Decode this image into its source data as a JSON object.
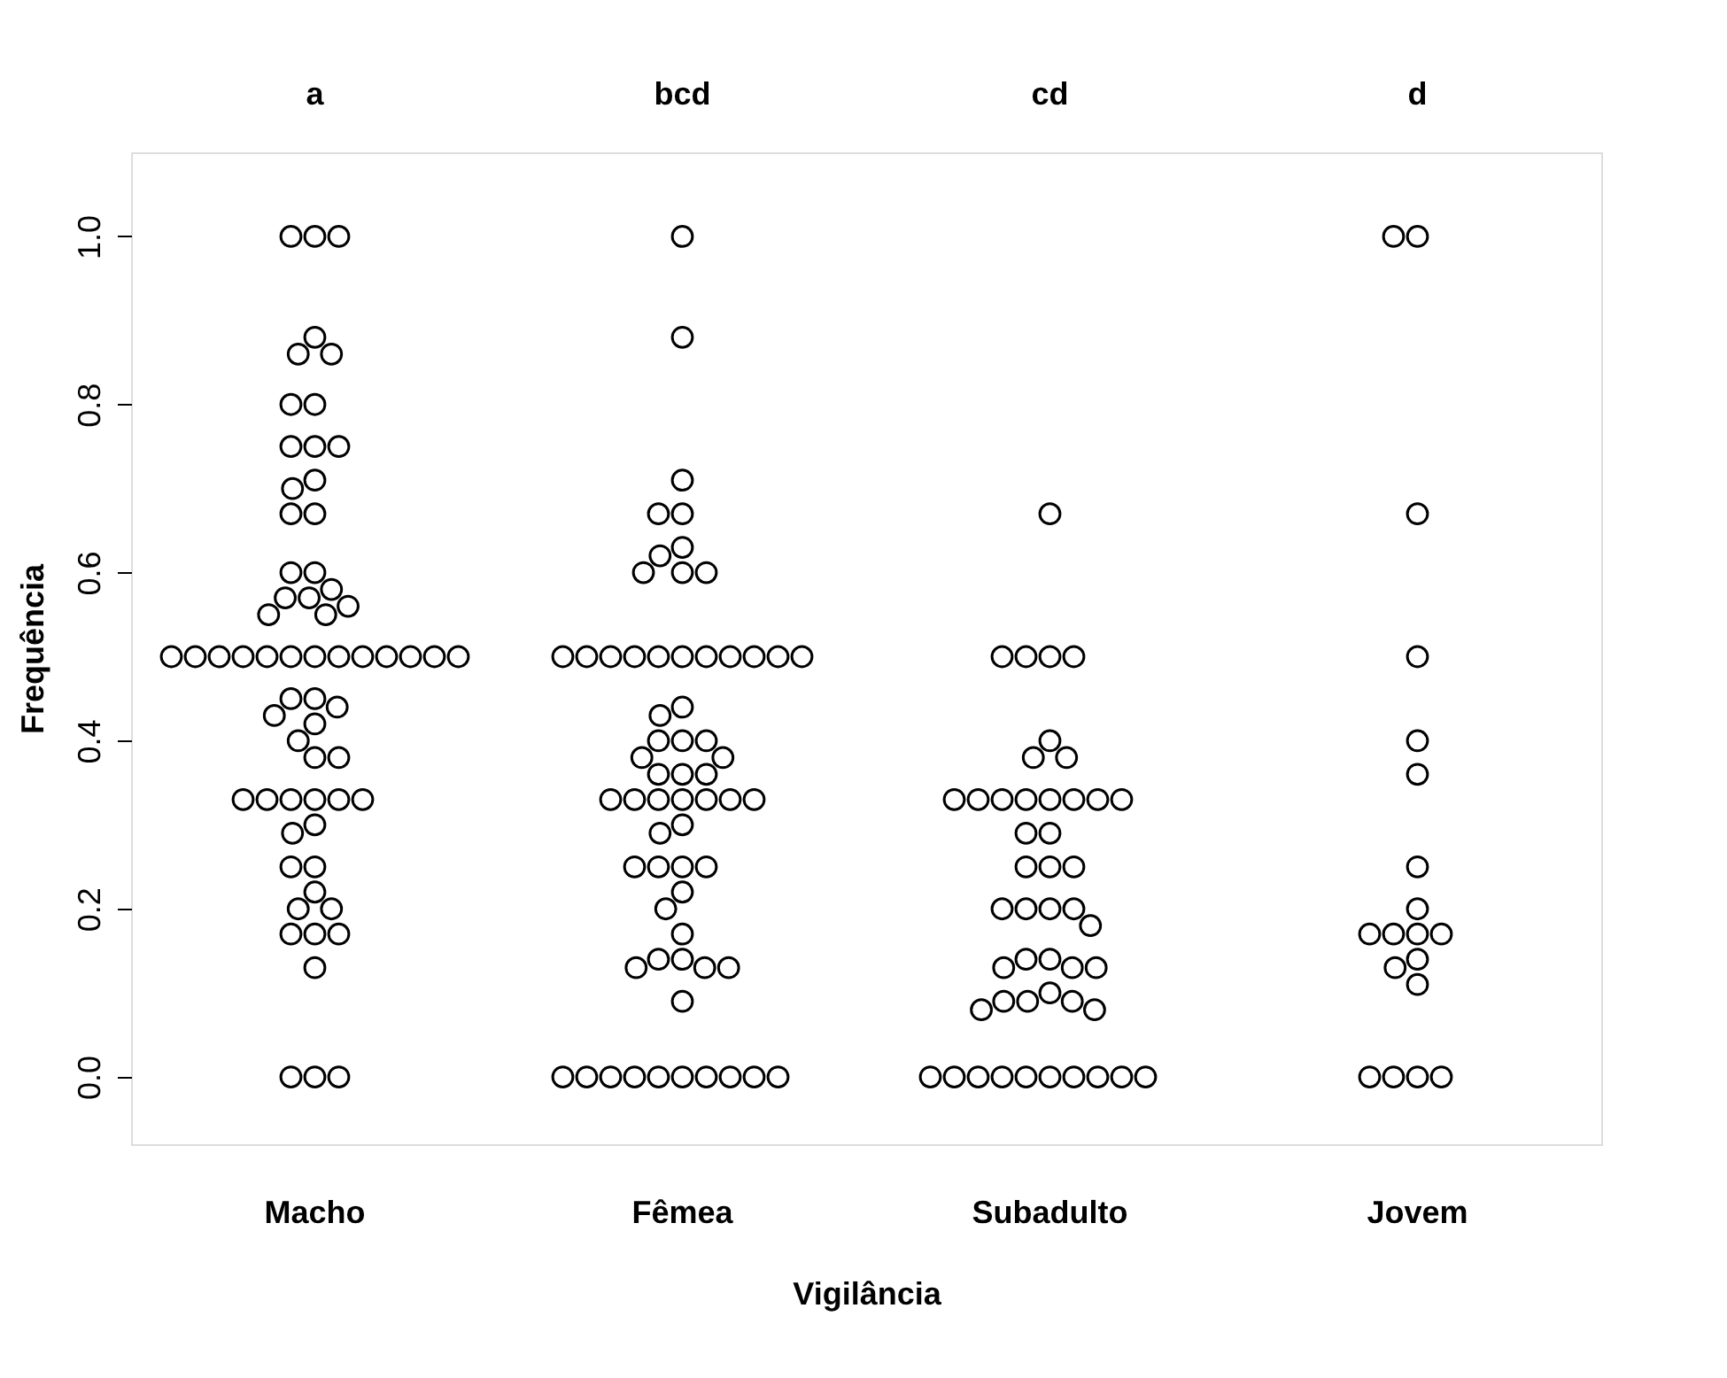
{
  "chart_data": {
    "type": "scatter",
    "categories": [
      "Macho",
      "Fêmea",
      "Subadulto",
      "Jovem"
    ],
    "xlabel": "Vigilância",
    "ylabel": "Frequência",
    "ylim": [
      -0.08,
      1.1
    ],
    "yticks": [
      {
        "value": 0,
        "label": "0.0"
      },
      {
        "value": 0.2,
        "label": "0.2"
      },
      {
        "value": 0.4,
        "label": "0.4"
      },
      {
        "value": 0.6,
        "label": "0.6"
      },
      {
        "value": 0.8,
        "label": "0.8"
      },
      {
        "value": 1,
        "label": "1.0"
      }
    ],
    "grid": false,
    "marker": "circle",
    "annotations": [
      "a",
      "bcd",
      "cd",
      "d"
    ],
    "series": [
      {
        "type": "scatter",
        "color": "#000000",
        "x": [
          "Macho",
          "Macho",
          "Macho",
          "Macho",
          "Macho",
          "Macho",
          "Macho",
          "Macho",
          "Macho",
          "Macho",
          "Macho",
          "Macho",
          "Macho",
          "Macho",
          "Macho",
          "Macho",
          "Macho",
          "Macho",
          "Macho",
          "Macho",
          "Macho",
          "Macho",
          "Macho",
          "Macho",
          "Macho",
          "Macho",
          "Macho",
          "Macho",
          "Macho",
          "Macho",
          "Macho",
          "Macho",
          "Macho",
          "Macho",
          "Macho",
          "Macho",
          "Macho",
          "Macho",
          "Macho",
          "Macho",
          "Macho",
          "Macho",
          "Macho",
          "Macho",
          "Macho",
          "Macho",
          "Macho",
          "Macho",
          "Macho",
          "Macho",
          "Macho",
          "Macho",
          "Macho",
          "Macho",
          "Macho",
          "Macho",
          "Macho",
          "Macho",
          "Macho",
          "Macho",
          "Macho",
          "Macho",
          "Macho",
          "Macho"
        ],
        "values": [
          1,
          1,
          1,
          0.88,
          0.86,
          0.86,
          0.8,
          0.8,
          0.75,
          0.75,
          0.75,
          0.71,
          0.7,
          0.67,
          0.67,
          0.6,
          0.6,
          0.58,
          0.57,
          0.57,
          0.56,
          0.55,
          0.55,
          0.5,
          0.5,
          0.5,
          0.5,
          0.5,
          0.5,
          0.5,
          0.5,
          0.5,
          0.5,
          0.5,
          0.5,
          0.5,
          0.45,
          0.45,
          0.44,
          0.43,
          0.42,
          0.4,
          0.38,
          0.38,
          0.33,
          0.33,
          0.33,
          0.33,
          0.33,
          0.33,
          0.3,
          0.29,
          0.25,
          0.25,
          0.22,
          0.2,
          0.2,
          0.17,
          0.17,
          0.17,
          0.13,
          0,
          0,
          0
        ]
      },
      {
        "type": "scatter",
        "color": "#000000",
        "x": [
          "Fêmea",
          "Fêmea",
          "Fêmea",
          "Fêmea",
          "Fêmea",
          "Fêmea",
          "Fêmea",
          "Fêmea",
          "Fêmea",
          "Fêmea",
          "Fêmea",
          "Fêmea",
          "Fêmea",
          "Fêmea",
          "Fêmea",
          "Fêmea",
          "Fêmea",
          "Fêmea",
          "Fêmea",
          "Fêmea",
          "Fêmea",
          "Fêmea",
          "Fêmea",
          "Fêmea",
          "Fêmea",
          "Fêmea",
          "Fêmea",
          "Fêmea",
          "Fêmea",
          "Fêmea",
          "Fêmea",
          "Fêmea",
          "Fêmea",
          "Fêmea",
          "Fêmea",
          "Fêmea",
          "Fêmea",
          "Fêmea",
          "Fêmea",
          "Fêmea",
          "Fêmea",
          "Fêmea",
          "Fêmea",
          "Fêmea",
          "Fêmea",
          "Fêmea",
          "Fêmea",
          "Fêmea",
          "Fêmea",
          "Fêmea",
          "Fêmea",
          "Fêmea",
          "Fêmea",
          "Fêmea",
          "Fêmea",
          "Fêmea",
          "Fêmea",
          "Fêmea",
          "Fêmea",
          "Fêmea",
          "Fêmea",
          "Fêmea",
          "Fêmea"
        ],
        "values": [
          1,
          0.88,
          0.71,
          0.67,
          0.67,
          0.63,
          0.62,
          0.6,
          0.6,
          0.6,
          0.5,
          0.5,
          0.5,
          0.5,
          0.5,
          0.5,
          0.5,
          0.5,
          0.5,
          0.5,
          0.5,
          0.44,
          0.43,
          0.4,
          0.4,
          0.4,
          0.38,
          0.38,
          0.36,
          0.36,
          0.36,
          0.33,
          0.33,
          0.33,
          0.33,
          0.33,
          0.33,
          0.33,
          0.3,
          0.29,
          0.25,
          0.25,
          0.25,
          0.25,
          0.22,
          0.2,
          0.17,
          0.14,
          0.14,
          0.13,
          0.13,
          0.13,
          0.09,
          0,
          0,
          0,
          0,
          0,
          0,
          0,
          0,
          0,
          0
        ]
      },
      {
        "type": "scatter",
        "color": "#000000",
        "x": [
          "Subadulto",
          "Subadulto",
          "Subadulto",
          "Subadulto",
          "Subadulto",
          "Subadulto",
          "Subadulto",
          "Subadulto",
          "Subadulto",
          "Subadulto",
          "Subadulto",
          "Subadulto",
          "Subadulto",
          "Subadulto",
          "Subadulto",
          "Subadulto",
          "Subadulto",
          "Subadulto",
          "Subadulto",
          "Subadulto",
          "Subadulto",
          "Subadulto",
          "Subadulto",
          "Subadulto",
          "Subadulto",
          "Subadulto",
          "Subadulto",
          "Subadulto",
          "Subadulto",
          "Subadulto",
          "Subadulto",
          "Subadulto",
          "Subadulto",
          "Subadulto",
          "Subadulto",
          "Subadulto",
          "Subadulto",
          "Subadulto",
          "Subadulto",
          "Subadulto",
          "Subadulto",
          "Subadulto",
          "Subadulto",
          "Subadulto",
          "Subadulto",
          "Subadulto",
          "Subadulto"
        ],
        "values": [
          0.67,
          0.5,
          0.5,
          0.5,
          0.5,
          0.4,
          0.38,
          0.38,
          0.33,
          0.33,
          0.33,
          0.33,
          0.33,
          0.33,
          0.33,
          0.33,
          0.29,
          0.29,
          0.25,
          0.25,
          0.25,
          0.2,
          0.2,
          0.2,
          0.2,
          0.18,
          0.14,
          0.14,
          0.13,
          0.13,
          0.13,
          0.1,
          0.09,
          0.09,
          0.09,
          0.08,
          0.08,
          0,
          0,
          0,
          0,
          0,
          0,
          0,
          0,
          0,
          0
        ]
      },
      {
        "type": "scatter",
        "color": "#000000",
        "x": [
          "Jovem",
          "Jovem",
          "Jovem",
          "Jovem",
          "Jovem",
          "Jovem",
          "Jovem",
          "Jovem",
          "Jovem",
          "Jovem",
          "Jovem",
          "Jovem",
          "Jovem",
          "Jovem",
          "Jovem",
          "Jovem",
          "Jovem",
          "Jovem",
          "Jovem"
        ],
        "values": [
          1,
          1,
          0.67,
          0.5,
          0.4,
          0.36,
          0.25,
          0.2,
          0.17,
          0.17,
          0.17,
          0.17,
          0.14,
          0.13,
          0.11,
          0,
          0,
          0,
          0
        ]
      }
    ]
  }
}
